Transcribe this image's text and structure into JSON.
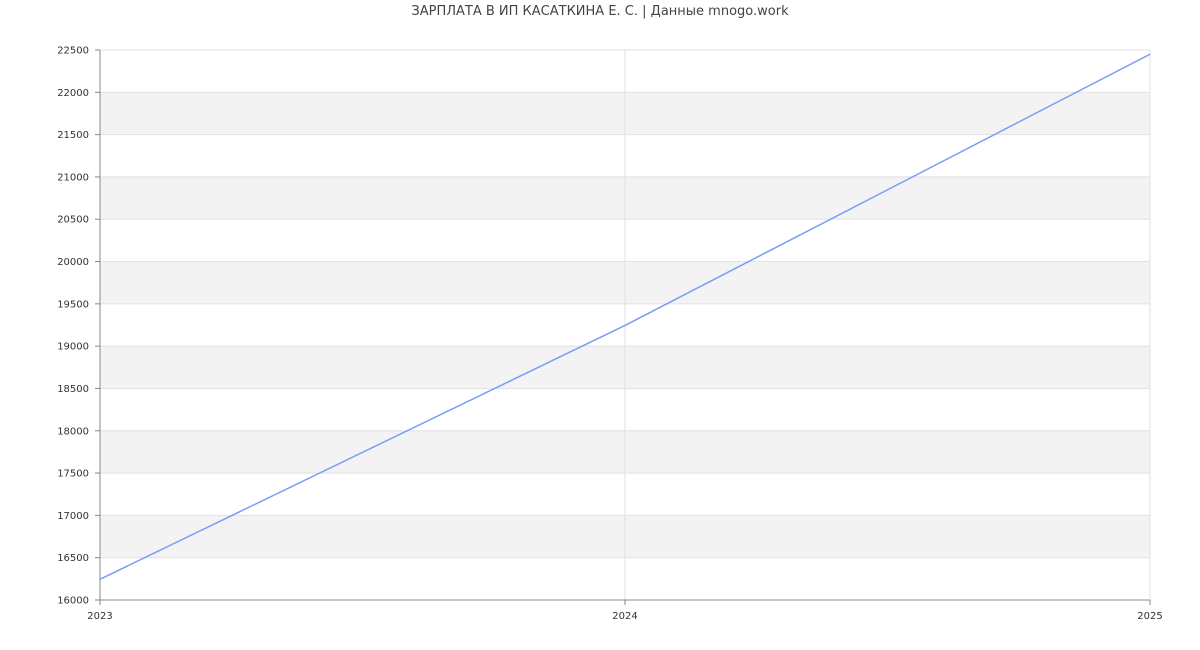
{
  "chart_data": {
    "type": "line",
    "title": "ЗАРПЛАТА В ИП КАСАТКИНА Е. С. | Данные mnogo.work",
    "x": [
      2023,
      2024,
      2025
    ],
    "series": [
      {
        "values": [
          16245,
          19245,
          22450
        ],
        "color": "#779ef5"
      }
    ],
    "xlim": [
      2023,
      2025
    ],
    "ylim": [
      16000,
      22500
    ],
    "xticks": [
      "2023",
      "2024",
      "2025"
    ],
    "yticks": [
      "16000",
      "16500",
      "17000",
      "17500",
      "18000",
      "18500",
      "19000",
      "19500",
      "20000",
      "20500",
      "21000",
      "21500",
      "22000",
      "22500"
    ],
    "grid": true,
    "band_color": "#f3f3f3",
    "legend": "none"
  }
}
